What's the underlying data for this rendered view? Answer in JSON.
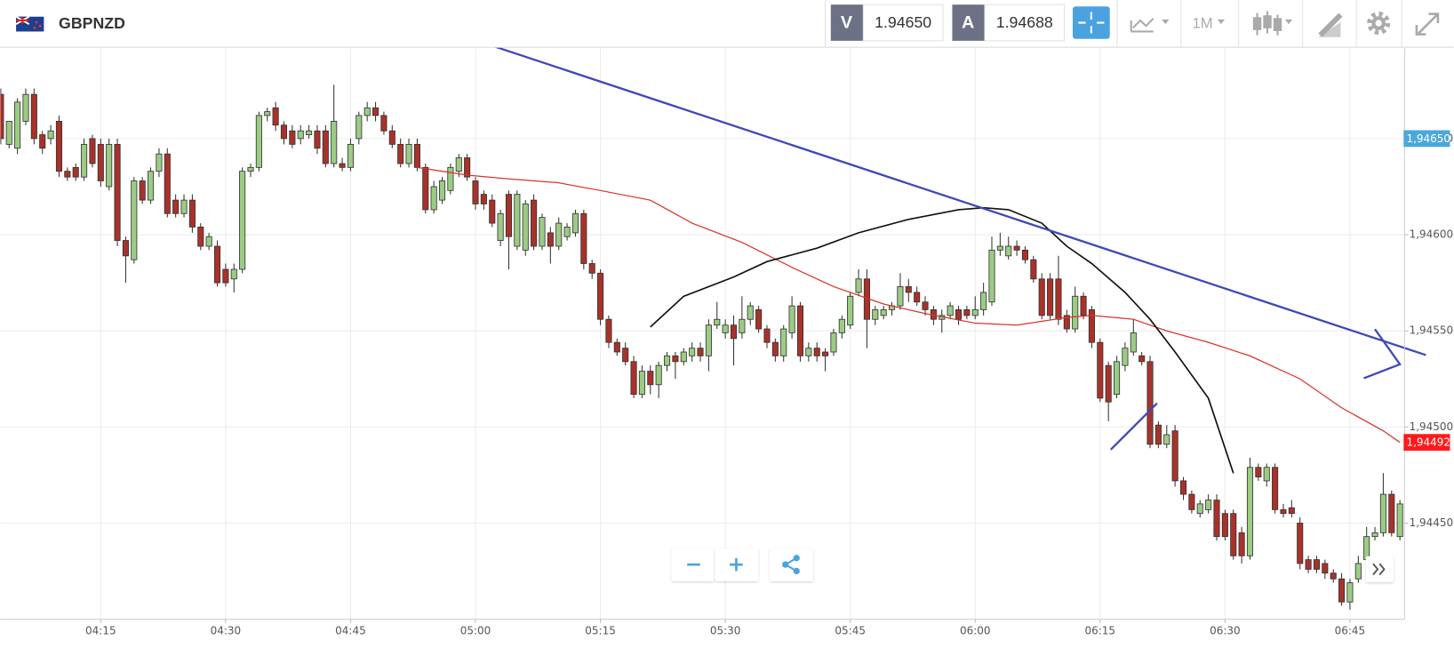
{
  "header": {
    "symbol": "GBPNZD",
    "bid_label": "V",
    "bid": "1.94650",
    "ask_label": "A",
    "ask": "1.94688",
    "timeframe": "1M"
  },
  "chart_data": {
    "type": "candlestick",
    "up_color": "#9ccc84",
    "down_color": "#a8322a",
    "grid": true,
    "ylim": [
      1.944,
      1.94697
    ],
    "yticks": [
      {
        "value": 1.9445,
        "label": "1,94450"
      },
      {
        "value": 1.945,
        "label": "1,94500"
      },
      {
        "value": 1.9455,
        "label": "1,94550"
      },
      {
        "value": 1.946,
        "label": "1,94600"
      },
      {
        "value": 1.9465,
        "label": "1,94650"
      }
    ],
    "bid_marker": {
      "value": 1.9465,
      "label": "1,94650",
      "color": "#4aa8dc"
    },
    "last_marker": {
      "value": 1.94492,
      "label": "1,94492",
      "color": "#ff1a1a"
    },
    "categories": [
      null,
      null,
      null,
      null,
      null,
      null,
      null,
      null,
      null,
      null,
      null,
      null,
      "04:15",
      null,
      null,
      null,
      null,
      null,
      null,
      null,
      null,
      null,
      null,
      null,
      null,
      null,
      null,
      "04:30",
      null,
      null,
      null,
      null,
      null,
      null,
      null,
      null,
      null,
      null,
      null,
      null,
      null,
      null,
      "04:45",
      null,
      null,
      null,
      null,
      null,
      null,
      null,
      null,
      null,
      null,
      null,
      null,
      null,
      null,
      "05:00",
      null,
      null,
      null,
      null,
      null,
      null,
      null,
      null,
      null,
      null,
      null,
      null,
      null,
      null,
      "05:15",
      null,
      null,
      null,
      null,
      null,
      null,
      null,
      null,
      null,
      null,
      null,
      null,
      null,
      null,
      "05:30",
      null,
      null,
      null,
      null,
      null,
      null,
      null,
      null,
      null,
      null,
      null,
      null,
      null,
      null,
      "05:45",
      null,
      null,
      null,
      null,
      null,
      null,
      null,
      null,
      null,
      null,
      null,
      null,
      null,
      null,
      "06:00",
      null,
      null,
      null,
      null,
      null,
      null,
      null,
      null,
      null,
      null,
      null,
      null,
      null,
      null,
      "06:15",
      null,
      null,
      null,
      null,
      null,
      null,
      null,
      null,
      null,
      null,
      null,
      null,
      null,
      null,
      "06:30",
      null,
      null,
      null,
      null,
      null,
      null,
      null,
      null,
      null,
      null,
      null,
      null,
      null,
      null,
      "06:45",
      null,
      null,
      null,
      null,
      null,
      null
    ],
    "candles": [
      [
        1.94673,
        1.94676,
        1.94647,
        1.9465
      ],
      [
        1.94647,
        1.94657,
        1.94645,
        1.94659
      ],
      [
        1.94645,
        1.94671,
        1.94642,
        1.94669
      ],
      [
        1.94659,
        1.94676,
        1.94657,
        1.94673
      ],
      [
        1.94673,
        1.94676,
        1.94647,
        1.9465
      ],
      [
        1.94652,
        1.94654,
        1.94642,
        1.94645
      ],
      [
        1.9465,
        1.94657,
        1.94647,
        1.94654
      ],
      [
        1.94659,
        1.94662,
        1.9463,
        1.94633
      ],
      [
        1.94633,
        1.94635,
        1.94628,
        1.9463
      ],
      [
        1.94635,
        1.94637,
        1.94628,
        1.9463
      ],
      [
        1.9463,
        1.9465,
        1.94628,
        1.94647
      ],
      [
        1.9465,
        1.94652,
        1.94635,
        1.94637
      ],
      [
        1.94647,
        1.9465,
        1.94625,
        1.94628
      ],
      [
        1.94625,
        1.9465,
        1.94623,
        1.94647
      ],
      [
        1.94647,
        1.9465,
        1.94594,
        1.94597
      ],
      [
        1.94597,
        1.94599,
        1.94575,
        1.94589
      ],
      [
        1.94587,
        1.9463,
        1.94585,
        1.94628
      ],
      [
        1.94628,
        1.9463,
        1.94616,
        1.94618
      ],
      [
        1.94618,
        1.94635,
        1.94616,
        1.94633
      ],
      [
        1.94633,
        1.94645,
        1.9463,
        1.94642
      ],
      [
        1.94642,
        1.94645,
        1.94609,
        1.94611
      ],
      [
        1.94618,
        1.94621,
        1.94609,
        1.94611
      ],
      [
        1.94611,
        1.94621,
        1.94609,
        1.94618
      ],
      [
        1.94618,
        1.94621,
        1.94601,
        1.94604
      ],
      [
        1.94604,
        1.94606,
        1.94592,
        1.94594
      ],
      [
        1.94594,
        1.94601,
        1.94592,
        1.94599
      ],
      [
        1.94594,
        1.94597,
        1.94573,
        1.94575
      ],
      [
        1.94582,
        1.94585,
        1.94573,
        1.94575
      ],
      [
        1.94577,
        1.94585,
        1.9457,
        1.94582
      ],
      [
        1.94582,
        1.94635,
        1.9458,
        1.94633
      ],
      [
        1.94633,
        1.94637,
        1.9463,
        1.94635
      ],
      [
        1.94635,
        1.94664,
        1.94633,
        1.94662
      ],
      [
        1.94662,
        1.94666,
        1.94659,
        1.94664
      ],
      [
        1.94666,
        1.94669,
        1.94654,
        1.94657
      ],
      [
        1.94657,
        1.94659,
        1.94647,
        1.9465
      ],
      [
        1.94654,
        1.94657,
        1.94645,
        1.94647
      ],
      [
        1.9465,
        1.94657,
        1.94647,
        1.94654
      ],
      [
        1.94652,
        1.94657,
        1.9465,
        1.94654
      ],
      [
        1.94654,
        1.94657,
        1.94642,
        1.94645
      ],
      [
        1.94654,
        1.94657,
        1.94635,
        1.94637
      ],
      [
        1.94637,
        1.94678,
        1.94635,
        1.94659
      ],
      [
        1.94637,
        1.9464,
        1.94633,
        1.94635
      ],
      [
        1.94635,
        1.9465,
        1.94633,
        1.94647
      ],
      [
        1.9465,
        1.94664,
        1.94647,
        1.94662
      ],
      [
        1.94662,
        1.94669,
        1.94659,
        1.94666
      ],
      [
        1.94666,
        1.94669,
        1.94659,
        1.94662
      ],
      [
        1.94662,
        1.94664,
        1.94652,
        1.94654
      ],
      [
        1.94654,
        1.94657,
        1.94645,
        1.94647
      ],
      [
        1.94647,
        1.9465,
        1.94635,
        1.94637
      ],
      [
        1.94637,
        1.9465,
        1.94635,
        1.94647
      ],
      [
        1.94647,
        1.9465,
        1.94633,
        1.94635
      ],
      [
        1.94635,
        1.94637,
        1.94611,
        1.94613
      ],
      [
        1.94613,
        1.94628,
        1.94611,
        1.94625
      ],
      [
        1.94618,
        1.9463,
        1.94616,
        1.94628
      ],
      [
        1.94623,
        1.94637,
        1.94621,
        1.94635
      ],
      [
        1.94633,
        1.94642,
        1.9463,
        1.9464
      ],
      [
        1.9464,
        1.94642,
        1.94628,
        1.9463
      ],
      [
        1.94628,
        1.9463,
        1.94613,
        1.94616
      ],
      [
        1.94621,
        1.94623,
        1.94613,
        1.94616
      ],
      [
        1.94618,
        1.94621,
        1.94604,
        1.94606
      ],
      [
        1.94597,
        1.94613,
        1.94594,
        1.94611
      ],
      [
        1.94621,
        1.94623,
        1.94582,
        1.94599
      ],
      [
        1.94594,
        1.94623,
        1.94592,
        1.94621
      ],
      [
        1.94592,
        1.94618,
        1.94589,
        1.94616
      ],
      [
        1.94618,
        1.94621,
        1.94592,
        1.94594
      ],
      [
        1.94594,
        1.94611,
        1.94592,
        1.94609
      ],
      [
        1.94601,
        1.94604,
        1.94585,
        1.94594
      ],
      [
        1.94594,
        1.94609,
        1.94592,
        1.94606
      ],
      [
        1.94599,
        1.94606,
        1.94597,
        1.94604
      ],
      [
        1.94601,
        1.94613,
        1.94599,
        1.94611
      ],
      [
        1.94611,
        1.94613,
        1.94582,
        1.94585
      ],
      [
        1.94585,
        1.94587,
        1.94577,
        1.9458
      ],
      [
        1.9458,
        1.94582,
        1.94553,
        1.94556
      ],
      [
        1.94556,
        1.94558,
        1.94541,
        1.94544
      ],
      [
        1.94544,
        1.94546,
        1.94537,
        1.94539
      ],
      [
        1.94541,
        1.94544,
        1.94532,
        1.94534
      ],
      [
        1.94534,
        1.94537,
        1.94515,
        1.94517
      ],
      [
        1.94517,
        1.94532,
        1.94515,
        1.94529
      ],
      [
        1.94529,
        1.94532,
        1.94517,
        1.94522
      ],
      [
        1.94522,
        1.94534,
        1.94515,
        1.94532
      ],
      [
        1.94532,
        1.94539,
        1.94529,
        1.94537
      ],
      [
        1.94537,
        1.94539,
        1.94525,
        1.94534
      ],
      [
        1.94534,
        1.94541,
        1.94532,
        1.94539
      ],
      [
        1.94537,
        1.94544,
        1.94534,
        1.94541
      ],
      [
        1.94541,
        1.94544,
        1.94534,
        1.94537
      ],
      [
        1.94537,
        1.94556,
        1.94529,
        1.94553
      ],
      [
        1.94553,
        1.94565,
        1.94551,
        1.94556
      ],
      [
        1.94549,
        1.94556,
        1.94546,
        1.94553
      ],
      [
        1.94553,
        1.94558,
        1.94532,
        1.94546
      ],
      [
        1.94549,
        1.94568,
        1.94546,
        1.94556
      ],
      [
        1.94556,
        1.94565,
        1.94553,
        1.94563
      ],
      [
        1.94561,
        1.94563,
        1.94549,
        1.94551
      ],
      [
        1.94551,
        1.94553,
        1.94541,
        1.94544
      ],
      [
        1.94544,
        1.94546,
        1.94534,
        1.94537
      ],
      [
        1.94537,
        1.94553,
        1.94534,
        1.94551
      ],
      [
        1.94549,
        1.94568,
        1.94546,
        1.94563
      ],
      [
        1.94563,
        1.94565,
        1.94534,
        1.94537
      ],
      [
        1.94537,
        1.94544,
        1.94534,
        1.94541
      ],
      [
        1.94541,
        1.94544,
        1.94534,
        1.94537
      ],
      [
        1.94539,
        1.94541,
        1.94529,
        1.94537
      ],
      [
        1.94539,
        1.94551,
        1.94537,
        1.94549
      ],
      [
        1.94549,
        1.94558,
        1.94546,
        1.94556
      ],
      [
        1.94553,
        1.9457,
        1.94551,
        1.94568
      ],
      [
        1.9457,
        1.94582,
        1.94568,
        1.94577
      ],
      [
        1.94577,
        1.94582,
        1.94541,
        1.94556
      ],
      [
        1.94556,
        1.94563,
        1.94553,
        1.94561
      ],
      [
        1.94558,
        1.94563,
        1.94556,
        1.94561
      ],
      [
        1.94561,
        1.94565,
        1.94558,
        1.94563
      ],
      [
        1.94563,
        1.9458,
        1.94561,
        1.94573
      ],
      [
        1.94573,
        1.94577,
        1.94565,
        1.9457
      ],
      [
        1.9457,
        1.94573,
        1.94563,
        1.94565
      ],
      [
        1.94565,
        1.94568,
        1.94558,
        1.94561
      ],
      [
        1.94561,
        1.94563,
        1.94553,
        1.94556
      ],
      [
        1.94556,
        1.94561,
        1.94549,
        1.94558
      ],
      [
        1.94558,
        1.94565,
        1.94556,
        1.94563
      ],
      [
        1.94561,
        1.94563,
        1.94553,
        1.94556
      ],
      [
        1.94561,
        1.94563,
        1.94556,
        1.94558
      ],
      [
        1.94558,
        1.94568,
        1.94556,
        1.94561
      ],
      [
        1.94561,
        1.94575,
        1.94558,
        1.9457
      ],
      [
        1.94565,
        1.94599,
        1.94563,
        1.94592
      ],
      [
        1.94592,
        1.94601,
        1.94589,
        1.94594
      ],
      [
        1.94589,
        1.94599,
        1.94587,
        1.94594
      ],
      [
        1.94594,
        1.94597,
        1.94589,
        1.94592
      ],
      [
        1.94592,
        1.94594,
        1.94585,
        1.94587
      ],
      [
        1.94587,
        1.94589,
        1.94575,
        1.94577
      ],
      [
        1.94577,
        1.9458,
        1.94556,
        1.94558
      ],
      [
        1.94577,
        1.9458,
        1.94556,
        1.94558
      ],
      [
        1.94577,
        1.94589,
        1.94553,
        1.94556
      ],
      [
        1.94558,
        1.94561,
        1.94549,
        1.94551
      ],
      [
        1.94551,
        1.94573,
        1.94549,
        1.94568
      ],
      [
        1.94568,
        1.9457,
        1.94556,
        1.94558
      ],
      [
        1.94561,
        1.94563,
        1.94541,
        1.94544
      ],
      [
        1.94544,
        1.94546,
        1.94513,
        1.94515
      ],
      [
        1.94532,
        1.94534,
        1.94503,
        1.94513
      ],
      [
        1.94517,
        1.94537,
        1.94515,
        1.94534
      ],
      [
        1.94532,
        1.94544,
        1.94529,
        1.94541
      ],
      [
        1.94539,
        1.94556,
        1.94537,
        1.94549
      ],
      [
        1.94537,
        1.94539,
        1.94532,
        1.94534
      ],
      [
        1.94534,
        1.94537,
        1.94489,
        1.94491
      ],
      [
        1.94501,
        1.94503,
        1.94489,
        1.94491
      ],
      [
        1.94491,
        1.94501,
        1.94489,
        1.94496
      ],
      [
        1.94498,
        1.94501,
        1.94469,
        1.94472
      ],
      [
        1.94472,
        1.94474,
        1.94462,
        1.94465
      ],
      [
        1.94465,
        1.94467,
        1.94455,
        1.94457
      ],
      [
        1.94455,
        1.94462,
        1.94453,
        1.9446
      ],
      [
        1.94457,
        1.94465,
        1.94455,
        1.94462
      ],
      [
        1.94462,
        1.94465,
        1.94441,
        1.94443
      ],
      [
        1.94455,
        1.94457,
        1.94441,
        1.94443
      ],
      [
        1.94455,
        1.94457,
        1.94431,
        1.94433
      ],
      [
        1.94445,
        1.94448,
        1.94429,
        1.94433
      ],
      [
        1.94433,
        1.94484,
        1.94431,
        1.94479
      ],
      [
        1.94479,
        1.94481,
        1.94472,
        1.94474
      ],
      [
        1.94472,
        1.94481,
        1.94469,
        1.94479
      ],
      [
        1.94479,
        1.94481,
        1.94455,
        1.94457
      ],
      [
        1.94457,
        1.9446,
        1.94453,
        1.94455
      ],
      [
        1.94458,
        1.94462,
        1.94453,
        1.94455
      ],
      [
        1.9445,
        1.94453,
        1.94426,
        1.94429
      ],
      [
        1.94431,
        1.94433,
        1.94424,
        1.94426
      ],
      [
        1.94431,
        1.94433,
        1.94424,
        1.94426
      ],
      [
        1.94429,
        1.94431,
        1.94421,
        1.94424
      ],
      [
        1.94424,
        1.94426,
        1.94419,
        1.94421
      ],
      [
        1.94421,
        1.94424,
        1.94407,
        1.94409
      ],
      [
        1.94409,
        1.94421,
        1.94405,
        1.94419
      ],
      [
        1.94421,
        1.94433,
        1.94419,
        1.94429
      ],
      [
        1.94431,
        1.94448,
        1.94429,
        1.94443
      ],
      [
        1.94443,
        1.94448,
        1.94441,
        1.94445
      ],
      [
        1.94445,
        1.94476,
        1.94443,
        1.94465
      ],
      [
        1.94465,
        1.94467,
        1.94443,
        1.94445
      ],
      [
        1.94443,
        1.94462,
        1.94441,
        1.9446
      ]
    ],
    "overlays": [
      {
        "color": "#d9342b",
        "x": [
          50,
          56,
          61,
          67,
          72,
          78,
          83,
          89,
          95,
          100,
          106,
          111,
          117,
          122,
          128,
          131,
          136,
          140,
          145,
          150,
          156,
          161,
          166,
          168
        ],
        "values": [
          1.94635,
          1.94631,
          1.94629,
          1.94627,
          1.94623,
          1.94618,
          1.94606,
          1.94596,
          1.94583,
          1.94573,
          1.94564,
          1.94559,
          1.94554,
          1.94553,
          1.94557,
          1.94558,
          1.94556,
          1.9455,
          1.94544,
          1.94537,
          1.94525,
          1.9451,
          1.94498,
          1.94492
        ]
      },
      {
        "color": "#111111",
        "x": [
          78,
          82,
          88,
          92,
          98,
          103,
          109,
          115,
          118,
          121,
          125,
          128,
          131,
          135,
          138,
          141,
          145,
          148
        ],
        "values": [
          1.94552,
          1.94568,
          1.94578,
          1.94586,
          1.94593,
          1.94601,
          1.94608,
          1.94613,
          1.94614,
          1.94613,
          1.94606,
          1.94594,
          1.94585,
          1.9457,
          1.94556,
          1.94539,
          1.94515,
          1.94476
        ]
      }
    ]
  }
}
